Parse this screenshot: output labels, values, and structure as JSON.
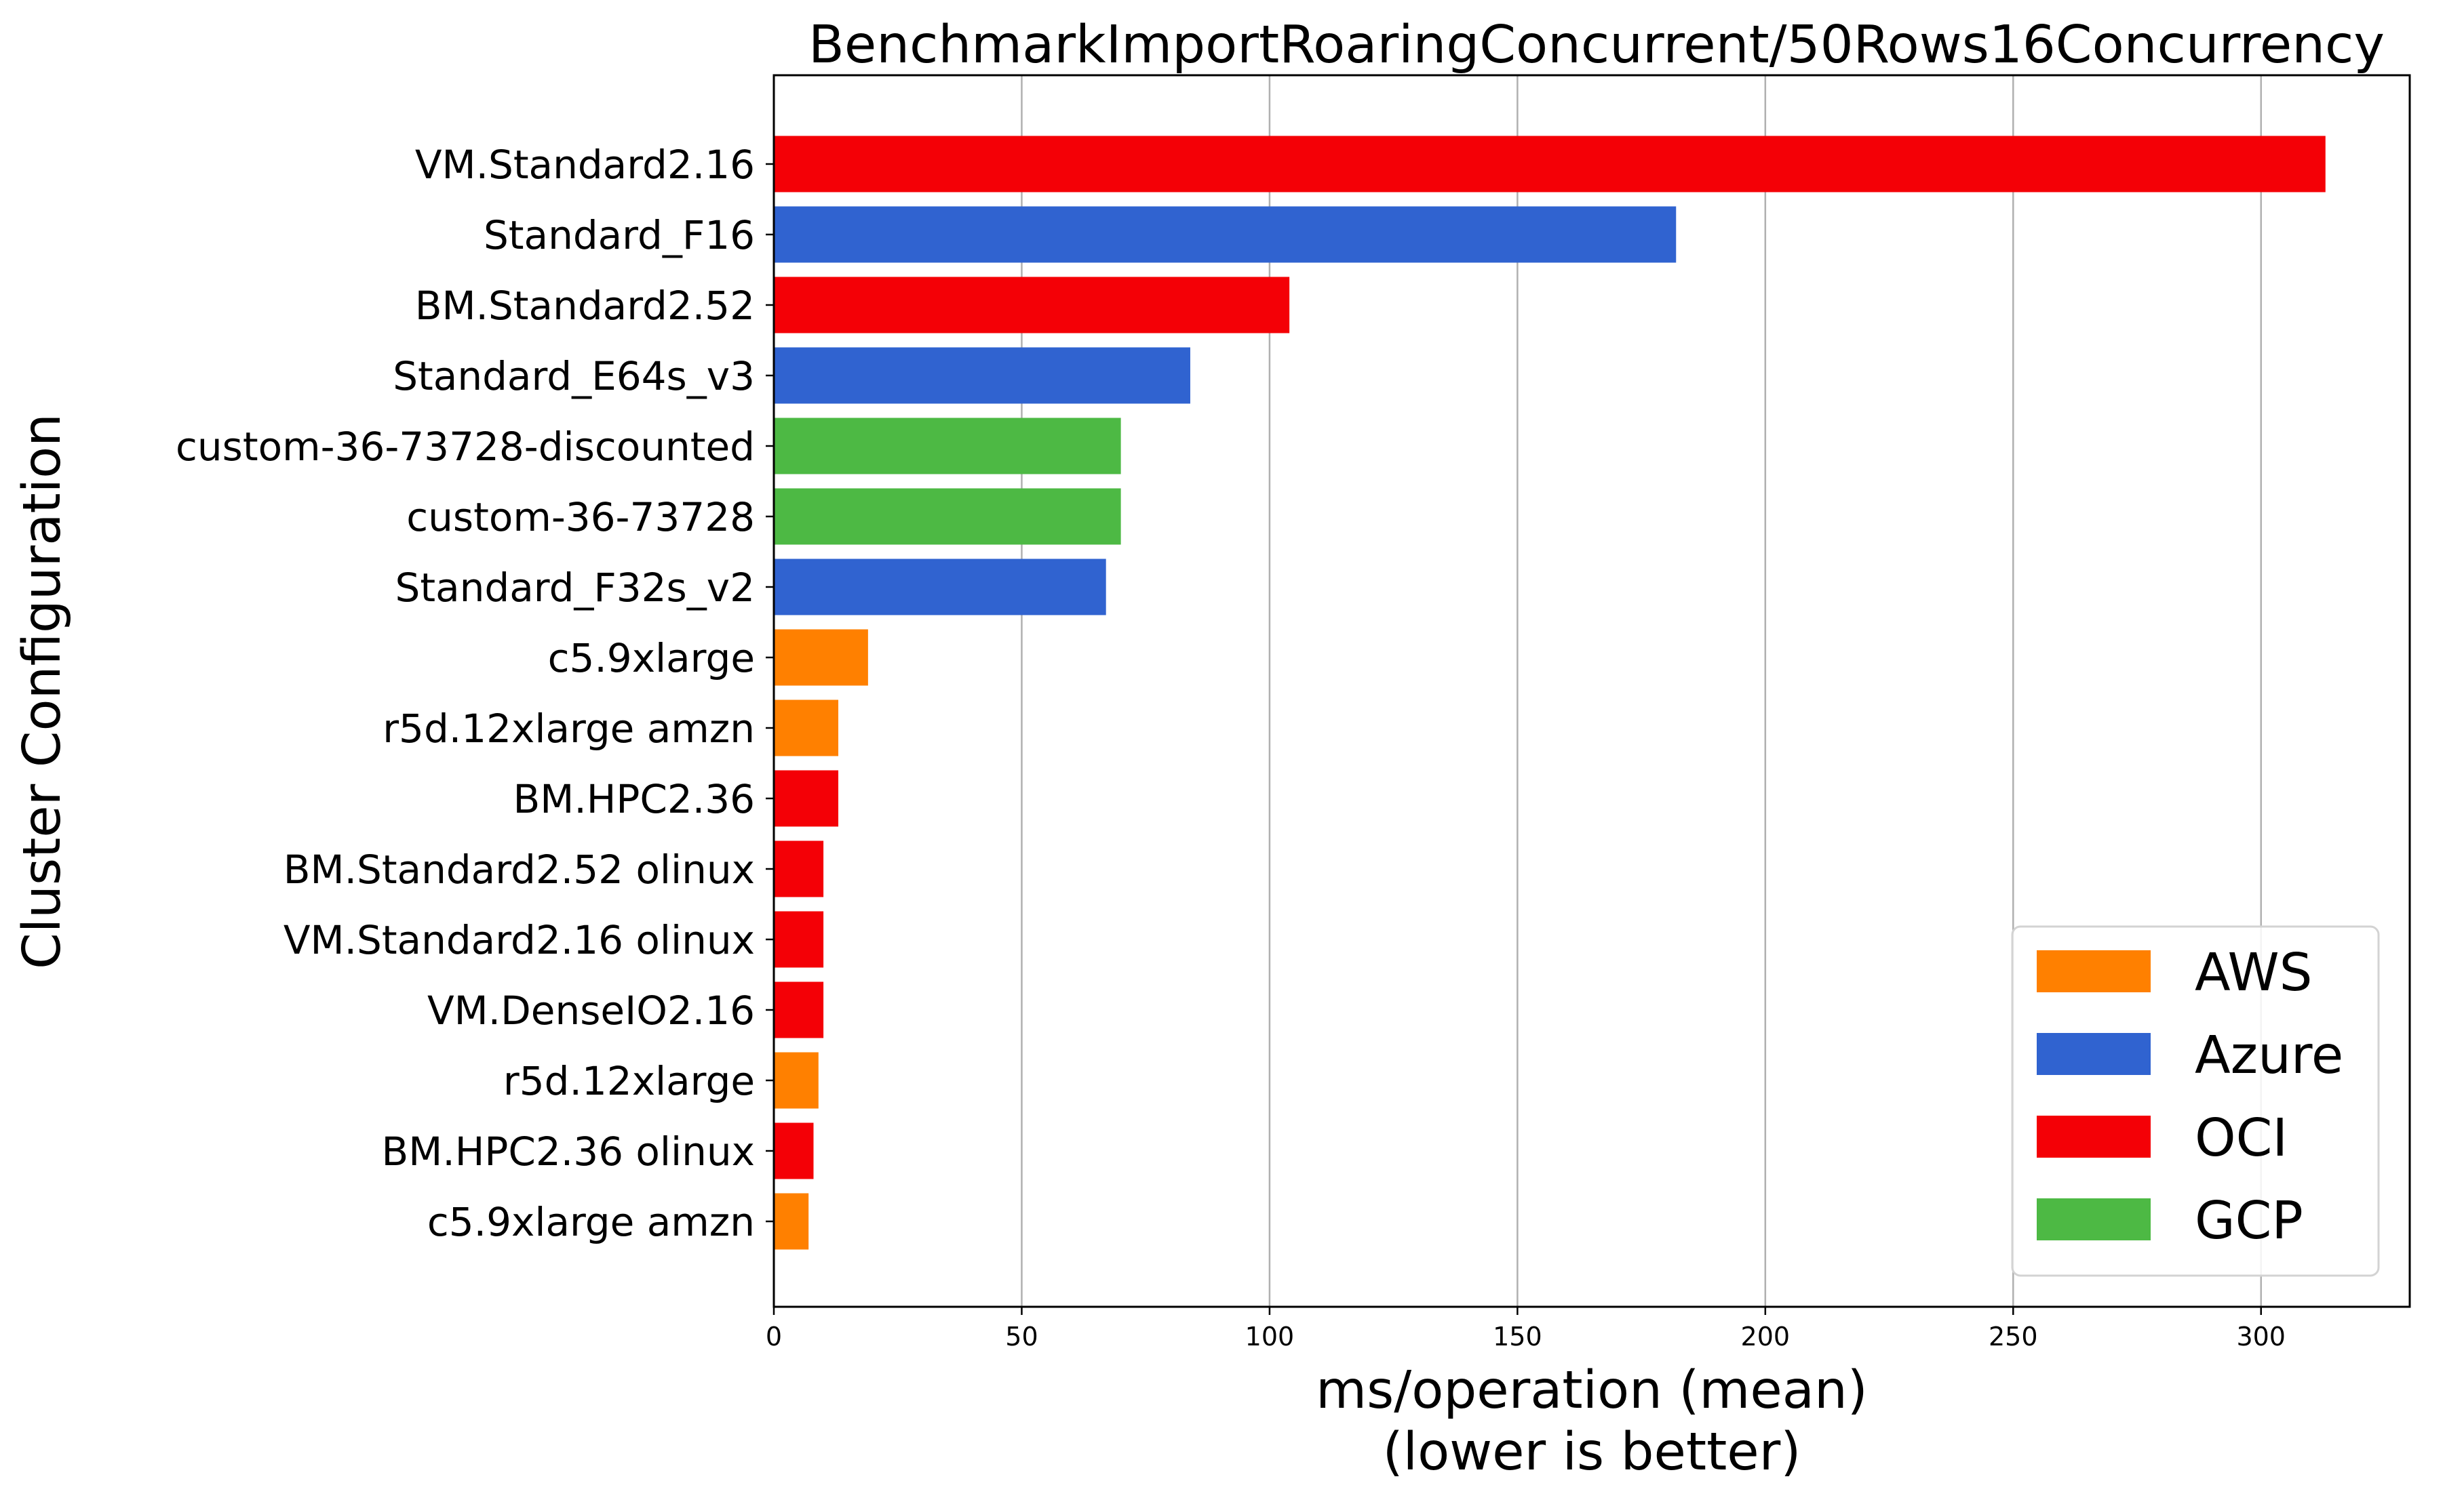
{
  "chart_data": {
    "type": "bar",
    "orientation": "horizontal",
    "title": "BenchmarkImportRoaringConcurrent/50Rows16Concurrency",
    "xlabel_lines": [
      "ms/operation (mean)",
      "(lower is better)"
    ],
    "ylabel": "Cluster Configuration",
    "xlim": [
      0,
      330
    ],
    "xticks": [
      0,
      50,
      100,
      150,
      200,
      250,
      300
    ],
    "grid": "vertical",
    "legend_position": "bottom-right",
    "colors": {
      "AWS": "#ff8000",
      "Azure": "#3063d0",
      "OCI": "#f40006",
      "GCP": "#4db944"
    },
    "legend": [
      "AWS",
      "Azure",
      "OCI",
      "GCP"
    ],
    "bars": [
      {
        "label": "VM.Standard2.16",
        "provider": "OCI",
        "value": 313
      },
      {
        "label": "Standard_F16",
        "provider": "Azure",
        "value": 182
      },
      {
        "label": "BM.Standard2.52",
        "provider": "OCI",
        "value": 104
      },
      {
        "label": "Standard_E64s_v3",
        "provider": "Azure",
        "value": 84
      },
      {
        "label": "custom-36-73728-discounted",
        "provider": "GCP",
        "value": 70
      },
      {
        "label": "custom-36-73728",
        "provider": "GCP",
        "value": 70
      },
      {
        "label": "Standard_F32s_v2",
        "provider": "Azure",
        "value": 67
      },
      {
        "label": "c5.9xlarge",
        "provider": "AWS",
        "value": 19
      },
      {
        "label": "r5d.12xlarge amzn",
        "provider": "AWS",
        "value": 13
      },
      {
        "label": "BM.HPC2.36",
        "provider": "OCI",
        "value": 13
      },
      {
        "label": "BM.Standard2.52 olinux",
        "provider": "OCI",
        "value": 10
      },
      {
        "label": "VM.Standard2.16 olinux",
        "provider": "OCI",
        "value": 10
      },
      {
        "label": "VM.DenseIO2.16",
        "provider": "OCI",
        "value": 10
      },
      {
        "label": "r5d.12xlarge",
        "provider": "AWS",
        "value": 9
      },
      {
        "label": "BM.HPC2.36 olinux",
        "provider": "OCI",
        "value": 8
      },
      {
        "label": "c5.9xlarge amzn",
        "provider": "AWS",
        "value": 7
      }
    ]
  }
}
